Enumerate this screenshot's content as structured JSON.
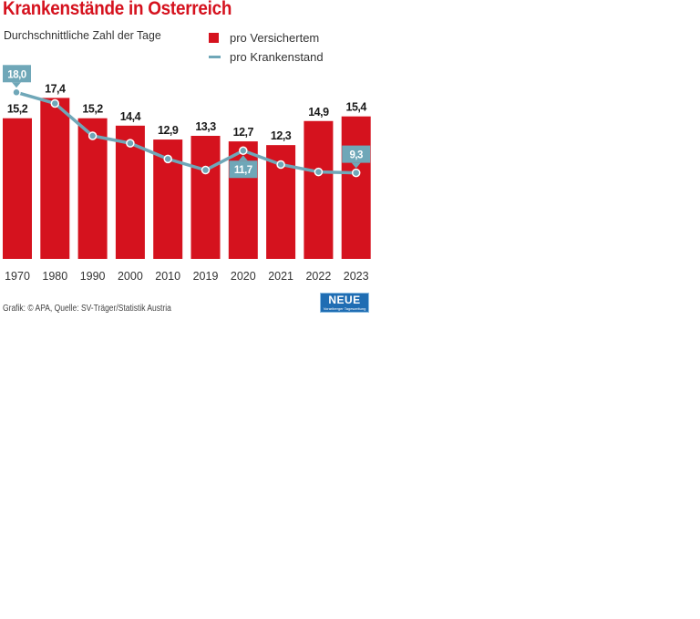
{
  "header": {
    "title": "Krankenstände in Österreich",
    "subtitle": "Durchschnittliche Zahl der Tage"
  },
  "footer": {
    "source": "Grafik: © APA, Quelle: SV-Träger/Statistik Austria",
    "logo_text": "NEUE",
    "logo_subtext": "Vorarlberger Tageszeitung"
  },
  "colors": {
    "bar": "#d5121e",
    "line": "#6fa7b8",
    "callout": "#6fa7b8",
    "title": "#d5121e"
  },
  "chart_data": {
    "type": "bar",
    "title": "Krankenstände in Österreich",
    "subtitle": "Durchschnittliche Zahl der Tage",
    "xlabel": "",
    "ylabel": "",
    "categories": [
      "1970",
      "1980",
      "1990",
      "2000",
      "2010",
      "2019",
      "2020",
      "2021",
      "2022",
      "2023"
    ],
    "series": [
      {
        "name": "pro Versichertem",
        "type": "bar",
        "values": [
          15.2,
          17.4,
          15.2,
          14.4,
          12.9,
          13.3,
          12.7,
          12.3,
          14.9,
          15.4
        ],
        "labels": [
          "15,2",
          "17,4",
          "15,2",
          "14,4",
          "12,9",
          "13,3",
          "12,7",
          "12,3",
          "14,9",
          "15,4"
        ]
      },
      {
        "name": "pro Krankenstand",
        "type": "line",
        "values": [
          18.0,
          16.8,
          13.3,
          12.5,
          10.8,
          9.6,
          11.7,
          10.2,
          9.4,
          9.3
        ],
        "callouts": [
          {
            "index": 0,
            "label": "18,0",
            "position": "above"
          },
          {
            "index": 6,
            "label": "11,7",
            "position": "below"
          },
          {
            "index": 9,
            "label": "9,3",
            "position": "above"
          }
        ]
      }
    ],
    "ylim": [
      0,
      20
    ],
    "grid": false,
    "legend": {
      "position": "top-right",
      "entries": [
        "pro Versichertem",
        "pro Krankenstand"
      ]
    }
  }
}
